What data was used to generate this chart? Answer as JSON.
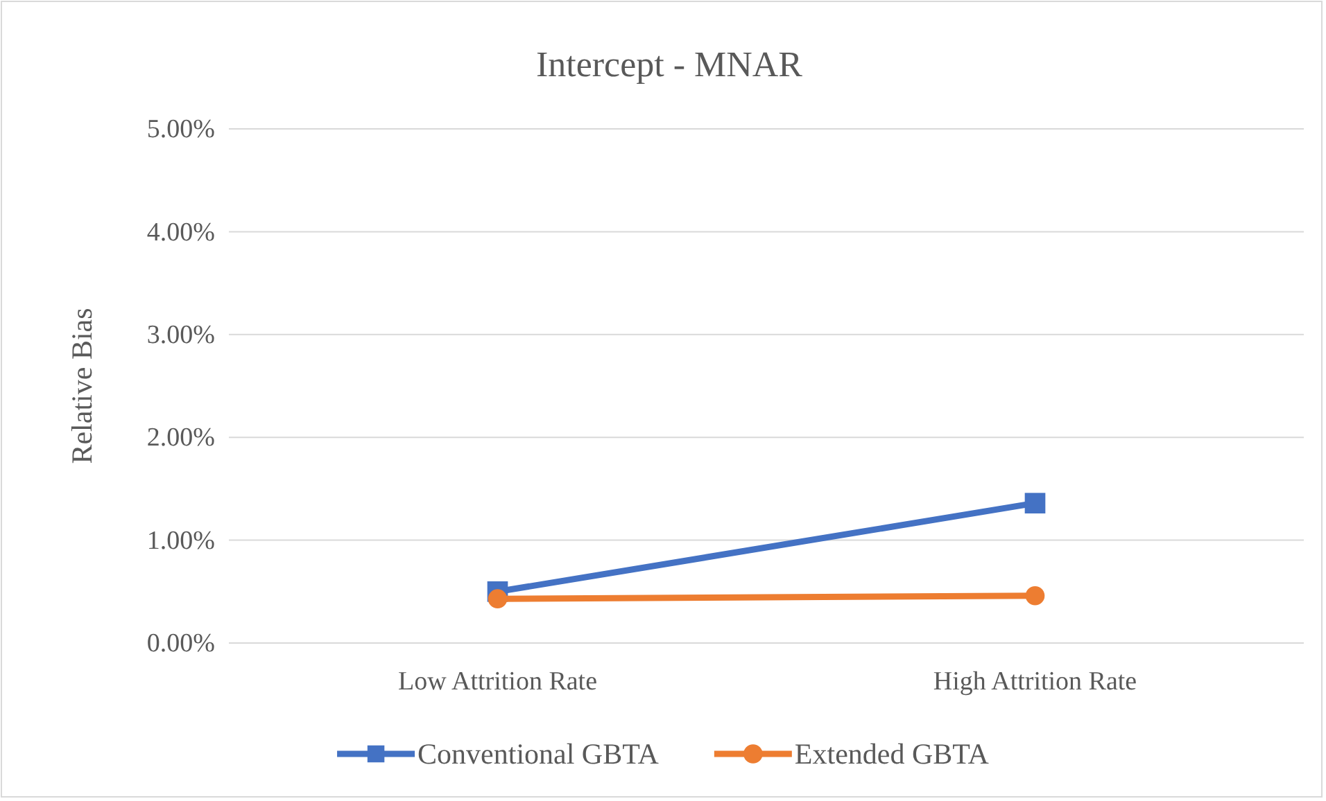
{
  "chart_data": {
    "type": "line",
    "title": "Intercept - MNAR",
    "ylabel": "Relative Bias",
    "categories": [
      "Low Attrition Rate",
      "High Attrition Rate"
    ],
    "series": [
      {
        "name": "Conventional GBTA",
        "color": "#4472c4",
        "marker": "square",
        "values": [
          0.5,
          1.36
        ]
      },
      {
        "name": "Extended GBTA",
        "color": "#ed7d31",
        "marker": "circle",
        "values": [
          0.43,
          0.46
        ]
      }
    ],
    "ylim": [
      0,
      5
    ],
    "yticks": [
      {
        "value": 0,
        "label": "0.00%"
      },
      {
        "value": 1,
        "label": "1.00%"
      },
      {
        "value": 2,
        "label": "2.00%"
      },
      {
        "value": 3,
        "label": "3.00%"
      },
      {
        "value": 4,
        "label": "4.00%"
      },
      {
        "value": 5,
        "label": "5.00%"
      }
    ],
    "grid": "y",
    "legend": "bottom"
  }
}
